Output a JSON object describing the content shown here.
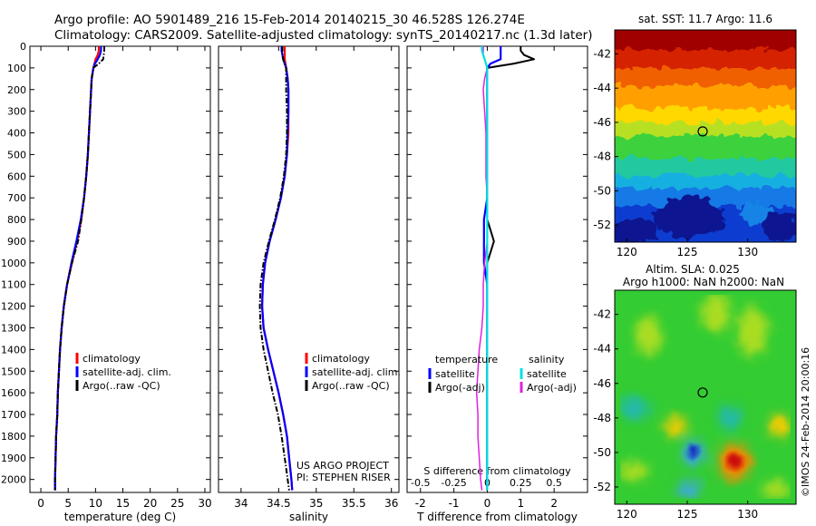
{
  "header": {
    "line1": "Argo profile: AO 5901489_216 15-Feb-2014 20140215_30 46.528S 126.274E",
    "line2": "Climatology: CARS2009. Satellite-adjusted climatology: synTS_20140217.nc (1.3d later)"
  },
  "credit": {
    "line1": "US ARGO PROJECT",
    "line2": "PI: STEPHEN RISER"
  },
  "side_label": "©IMOS 24-Feb-2014 20:00:16",
  "colors": {
    "climatology": "#ff0000",
    "satellite": "#0000ff",
    "argo": "#000000",
    "salinity_satellite": "#00e0e0",
    "salinity_argo": "#e020e0"
  },
  "chart_data": [
    {
      "type": "line",
      "panel": "temperature",
      "xlabel": "temperature (deg C)",
      "xlim": [
        -2,
        31
      ],
      "xticks": [
        0,
        5,
        10,
        15,
        20,
        25,
        30
      ],
      "ylim": [
        2060,
        0
      ],
      "yticks": [
        0,
        100,
        200,
        300,
        400,
        500,
        600,
        700,
        800,
        900,
        1000,
        1100,
        1200,
        1300,
        1400,
        1500,
        1600,
        1700,
        1800,
        1900,
        2000
      ],
      "legend": [
        "climatology",
        "satellite-adj. clim.",
        "Argo(..raw -QC)"
      ],
      "depth": [
        0,
        20,
        40,
        60,
        80,
        100,
        150,
        200,
        300,
        400,
        500,
        600,
        700,
        800,
        900,
        1000,
        1100,
        1200,
        1300,
        1400,
        1500,
        1600,
        1700,
        1800,
        1900,
        2000,
        2050
      ],
      "series": [
        {
          "name": "climatology",
          "values": [
            10.6,
            10.6,
            10.4,
            10.0,
            9.8,
            9.6,
            9.3,
            9.2,
            9.0,
            8.8,
            8.6,
            8.3,
            7.9,
            7.4,
            6.6,
            5.7,
            4.8,
            4.2,
            3.8,
            3.5,
            3.3,
            3.1,
            3.0,
            2.8,
            2.7,
            2.6,
            2.6
          ]
        },
        {
          "name": "satellite-adj. clim.",
          "values": [
            11.0,
            11.0,
            10.8,
            10.4,
            9.9,
            9.6,
            9.3,
            9.2,
            9.0,
            8.8,
            8.6,
            8.3,
            7.9,
            7.3,
            6.5,
            5.6,
            4.8,
            4.2,
            3.8,
            3.5,
            3.3,
            3.1,
            3.0,
            2.8,
            2.7,
            2.6,
            2.6
          ]
        },
        {
          "name": "Argo(..raw -QC)",
          "values": [
            11.6,
            11.6,
            11.5,
            11.4,
            10.6,
            9.6,
            9.3,
            9.2,
            9.0,
            8.8,
            8.6,
            8.3,
            7.9,
            7.4,
            6.8,
            5.7,
            4.8,
            4.2,
            3.8,
            3.5,
            3.3,
            3.1,
            3.0,
            2.8,
            2.7,
            2.6,
            2.6
          ]
        }
      ]
    },
    {
      "type": "line",
      "panel": "salinity",
      "xlabel": "salinity",
      "xlim": [
        33.7,
        36.1
      ],
      "xticks": [
        34,
        34.5,
        35,
        35.5,
        36
      ],
      "ylim": [
        2060,
        0
      ],
      "legend": [
        "climatology",
        "satellite-adj. clim.",
        "Argo(..raw -QC)"
      ],
      "depth": [
        0,
        20,
        40,
        60,
        80,
        100,
        150,
        200,
        300,
        400,
        500,
        600,
        700,
        800,
        900,
        1000,
        1100,
        1200,
        1300,
        1400,
        1500,
        1600,
        1700,
        1800,
        1900,
        2000,
        2050
      ],
      "series": [
        {
          "name": "climatology",
          "values": [
            34.58,
            34.58,
            34.58,
            34.58,
            34.59,
            34.6,
            34.62,
            34.63,
            34.63,
            34.63,
            34.61,
            34.58,
            34.53,
            34.46,
            34.38,
            34.32,
            34.29,
            34.28,
            34.3,
            34.36,
            34.43,
            34.5,
            34.56,
            34.61,
            34.64,
            34.67,
            34.68
          ]
        },
        {
          "name": "satellite-adj. clim.",
          "values": [
            34.54,
            34.54,
            34.55,
            34.56,
            34.58,
            34.6,
            34.62,
            34.63,
            34.63,
            34.62,
            34.61,
            34.58,
            34.53,
            34.46,
            34.38,
            34.32,
            34.29,
            34.28,
            34.3,
            34.36,
            34.43,
            34.5,
            34.56,
            34.61,
            34.64,
            34.67,
            34.68
          ]
        },
        {
          "name": "Argo(..raw -QC)",
          "values": [
            34.55,
            34.55,
            34.55,
            34.56,
            34.58,
            34.6,
            34.6,
            34.6,
            34.61,
            34.61,
            34.6,
            34.57,
            34.52,
            34.45,
            34.37,
            34.3,
            34.26,
            34.25,
            34.26,
            34.3,
            34.36,
            34.42,
            34.49,
            34.54,
            34.58,
            34.62,
            34.64
          ]
        }
      ]
    },
    {
      "type": "line",
      "panel": "difference",
      "xlabel": "T difference from climatology",
      "xlabel_top": "S difference from climatology",
      "xlim": [
        -2.4,
        3.0
      ],
      "xticks": [
        -2,
        -1,
        0,
        1,
        2
      ],
      "xticks_top": [
        -0.5,
        -0.25,
        0,
        0.25,
        0.5
      ],
      "ylim": [
        2060,
        0
      ],
      "legend": {
        "temperature_title": "temperature",
        "salinity_title": "salinity",
        "temperature": [
          "satellite",
          "Argo(-adj)"
        ],
        "salinity": [
          "satellite",
          "Argo(-adj)"
        ]
      },
      "depth": [
        0,
        20,
        40,
        60,
        80,
        100,
        150,
        200,
        300,
        400,
        500,
        600,
        700,
        800,
        900,
        1000,
        1100,
        1200,
        1300,
        1400,
        1500,
        1600,
        1700,
        1800,
        1900,
        2000,
        2050
      ],
      "series": [
        {
          "name": "temperature satellite",
          "values": [
            0.4,
            0.4,
            0.4,
            0.4,
            0.1,
            0.0,
            0.0,
            0.0,
            0.0,
            0.0,
            0.0,
            0.0,
            0.0,
            -0.1,
            -0.1,
            -0.1,
            0.0,
            0.0,
            0.0,
            0.0,
            0.0,
            0.0,
            0.0,
            0.0,
            0.0,
            0.0,
            0.0
          ]
        },
        {
          "name": "temperature Argo(-adj)",
          "values": [
            1.0,
            1.0,
            1.1,
            1.4,
            0.8,
            0.0,
            0.0,
            0.0,
            0.0,
            0.0,
            0.0,
            0.0,
            0.0,
            0.0,
            0.2,
            0.0,
            0.0,
            0.0,
            0.0,
            0.0,
            0.0,
            0.0,
            0.0,
            0.0,
            0.0,
            0.0,
            0.0
          ]
        },
        {
          "name": "salinity satellite",
          "values": [
            -0.04,
            -0.04,
            -0.03,
            -0.02,
            -0.01,
            0.0,
            0.0,
            0.0,
            0.0,
            0.0,
            0.0,
            0.0,
            0.0,
            0.0,
            0.0,
            0.0,
            0.0,
            0.0,
            0.0,
            0.0,
            0.0,
            0.0,
            0.0,
            0.0,
            0.0,
            0.0,
            0.0
          ]
        },
        {
          "name": "salinity Argo(-adj)",
          "values": [
            -0.03,
            -0.03,
            -0.03,
            -0.02,
            -0.01,
            0.0,
            -0.02,
            -0.03,
            -0.02,
            -0.01,
            -0.01,
            -0.01,
            0.0,
            0.0,
            0.0,
            -0.02,
            -0.03,
            -0.03,
            -0.04,
            -0.06,
            -0.07,
            -0.08,
            -0.07,
            -0.07,
            -0.06,
            -0.05,
            -0.04
          ]
        }
      ]
    },
    {
      "type": "heatmap",
      "panel": "sst",
      "title": "sat. SST: 11.7 Argo: 11.6",
      "xlim": [
        119,
        134
      ],
      "ylim": [
        -53,
        -40.6
      ],
      "xticks": [
        120,
        125,
        130
      ],
      "yticks": [
        -42,
        -44,
        -46,
        -48,
        -50,
        -52
      ],
      "marker": {
        "lon": 126.274,
        "lat": -46.528
      }
    },
    {
      "type": "heatmap",
      "panel": "sla",
      "title_line1": "Altim. SLA: 0.025",
      "title_line2": "Argo h1000: NaN h2000: NaN",
      "xlim": [
        119,
        134
      ],
      "ylim": [
        -53,
        -40.6
      ],
      "xticks": [
        120,
        125,
        130
      ],
      "yticks": [
        -42,
        -44,
        -46,
        -48,
        -50,
        -52
      ],
      "marker": {
        "lon": 126.274,
        "lat": -46.528
      }
    }
  ]
}
